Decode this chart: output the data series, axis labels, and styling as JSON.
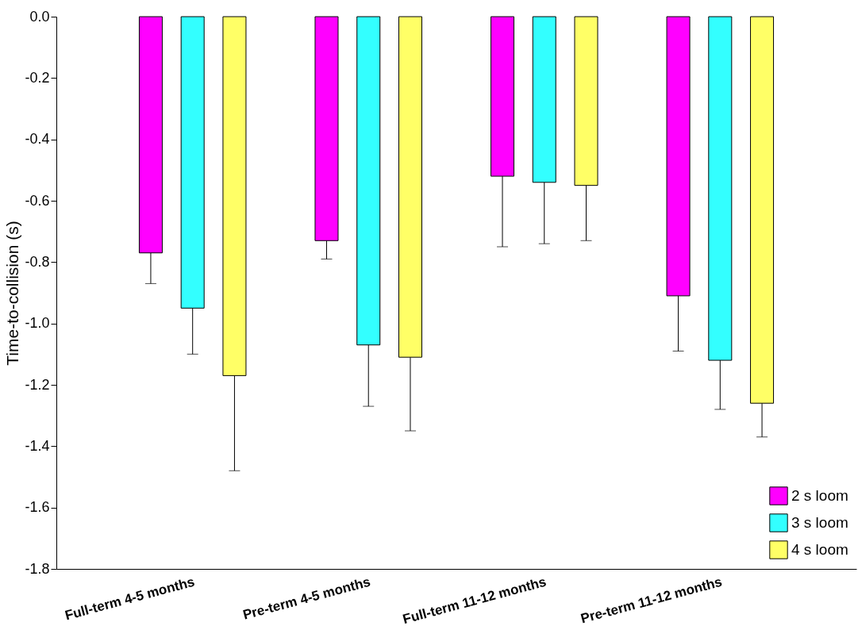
{
  "chart_data": {
    "type": "bar",
    "ylabel": "Time-to-collision (s)",
    "categories": [
      "Full-term 4-5 months",
      "Pre-term 4-5 months",
      "Full-term 11-12 months",
      "Pre-term 11-12 months"
    ],
    "series": [
      {
        "name": "2 s loom",
        "color": "#ff00ff",
        "values": [
          -0.77,
          -0.73,
          -0.52,
          -0.91
        ],
        "errors": [
          [
            -0.87,
            -0.77
          ],
          [
            -0.79,
            -0.73
          ],
          [
            -0.75,
            -0.52
          ],
          [
            -1.09,
            -0.91
          ]
        ]
      },
      {
        "name": "3 s loom",
        "color": "#33ffff",
        "values": [
          -0.95,
          -1.07,
          -0.54,
          -1.12
        ],
        "errors": [
          [
            -1.1,
            -0.95
          ],
          [
            -1.27,
            -1.07
          ],
          [
            -0.74,
            -0.54
          ],
          [
            -1.28,
            -1.12
          ]
        ]
      },
      {
        "name": "4 s loom",
        "color": "#ffff66",
        "values": [
          -1.17,
          -1.11,
          -0.55,
          -1.26
        ],
        "errors": [
          [
            -1.48,
            -1.17
          ],
          [
            -1.35,
            -1.11
          ],
          [
            -0.73,
            -0.55
          ],
          [
            -1.37,
            -1.26
          ]
        ]
      }
    ],
    "ylim": [
      -1.8,
      0
    ],
    "yticks": [
      {
        "value": -1.8,
        "label": "-1.8"
      },
      {
        "value": -1.6,
        "label": "-1.6"
      },
      {
        "value": -1.4,
        "label": "-1.4"
      },
      {
        "value": -1.2,
        "label": "-1.2"
      },
      {
        "value": -1.0,
        "label": "-1.0"
      },
      {
        "value": -0.8,
        "label": "-0.8"
      },
      {
        "value": -0.6,
        "label": "-0.6"
      },
      {
        "value": -0.4,
        "label": "-0.4"
      },
      {
        "value": -0.2,
        "label": "-0.2"
      },
      {
        "value": 0,
        "label": "0.0"
      }
    ],
    "grid": false,
    "legend": "bottom right"
  }
}
